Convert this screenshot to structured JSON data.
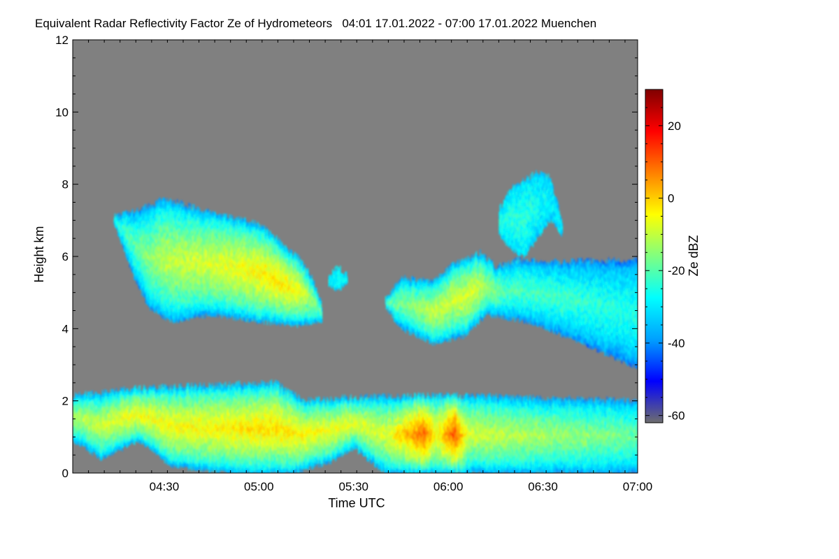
{
  "chart_data": {
    "type": "heatmap",
    "title": "Equivalent Radar Reflectivity Factor Ze of Hydrometeors   04:01 17.01.2022 - 07:00 17.01.2022 Muenchen",
    "xlabel": "Time UTC",
    "ylabel": "Height km",
    "colorbar_label": "Ze dBZ",
    "x_range_minutes": [
      241,
      420
    ],
    "x_ticks": [
      {
        "label": "04:30",
        "minute": 270
      },
      {
        "label": "05:00",
        "minute": 300
      },
      {
        "label": "05:30",
        "minute": 330
      },
      {
        "label": "06:00",
        "minute": 360
      },
      {
        "label": "06:30",
        "minute": 390
      },
      {
        "label": "07:00",
        "minute": 420
      }
    ],
    "y_range": [
      0,
      12
    ],
    "y_ticks": [
      0,
      2,
      4,
      6,
      8,
      10,
      12
    ],
    "colorbar_range": [
      -62,
      30
    ],
    "colorbar_ticks": [
      -60,
      -40,
      -20,
      0,
      20
    ],
    "background_color": "#808080",
    "colormap": [
      "#6e6e6e",
      "#0000ff",
      "#00a0ff",
      "#00ffff",
      "#80ff80",
      "#ffff00",
      "#ff8000",
      "#ff0000",
      "#800000"
    ],
    "echo_regions": [
      {
        "name": "low-level precipitation layer",
        "time_minutes": [
          241,
          420
        ],
        "height_km": [
          0.0,
          2.5
        ],
        "ze_dbz_range": [
          -45,
          15
        ]
      },
      {
        "name": "mid-level cloud A",
        "time_minutes": [
          254,
          320
        ],
        "height_km": [
          3.9,
          7.7
        ],
        "ze_dbz_range": [
          -45,
          0
        ]
      },
      {
        "name": "small cloud fragment",
        "time_minutes": [
          322,
          328
        ],
        "height_km": [
          5.0,
          5.7
        ],
        "ze_dbz_range": [
          -35,
          -25
        ]
      },
      {
        "name": "mid-level cloud B",
        "time_minutes": [
          340,
          420
        ],
        "height_km": [
          2.8,
          6.0
        ],
        "ze_dbz_range": [
          -45,
          -5
        ]
      },
      {
        "name": "upper cloud fragments",
        "time_minutes": [
          376,
          396
        ],
        "height_km": [
          6.0,
          8.4
        ],
        "ze_dbz_range": [
          -35,
          -20
        ]
      }
    ]
  }
}
